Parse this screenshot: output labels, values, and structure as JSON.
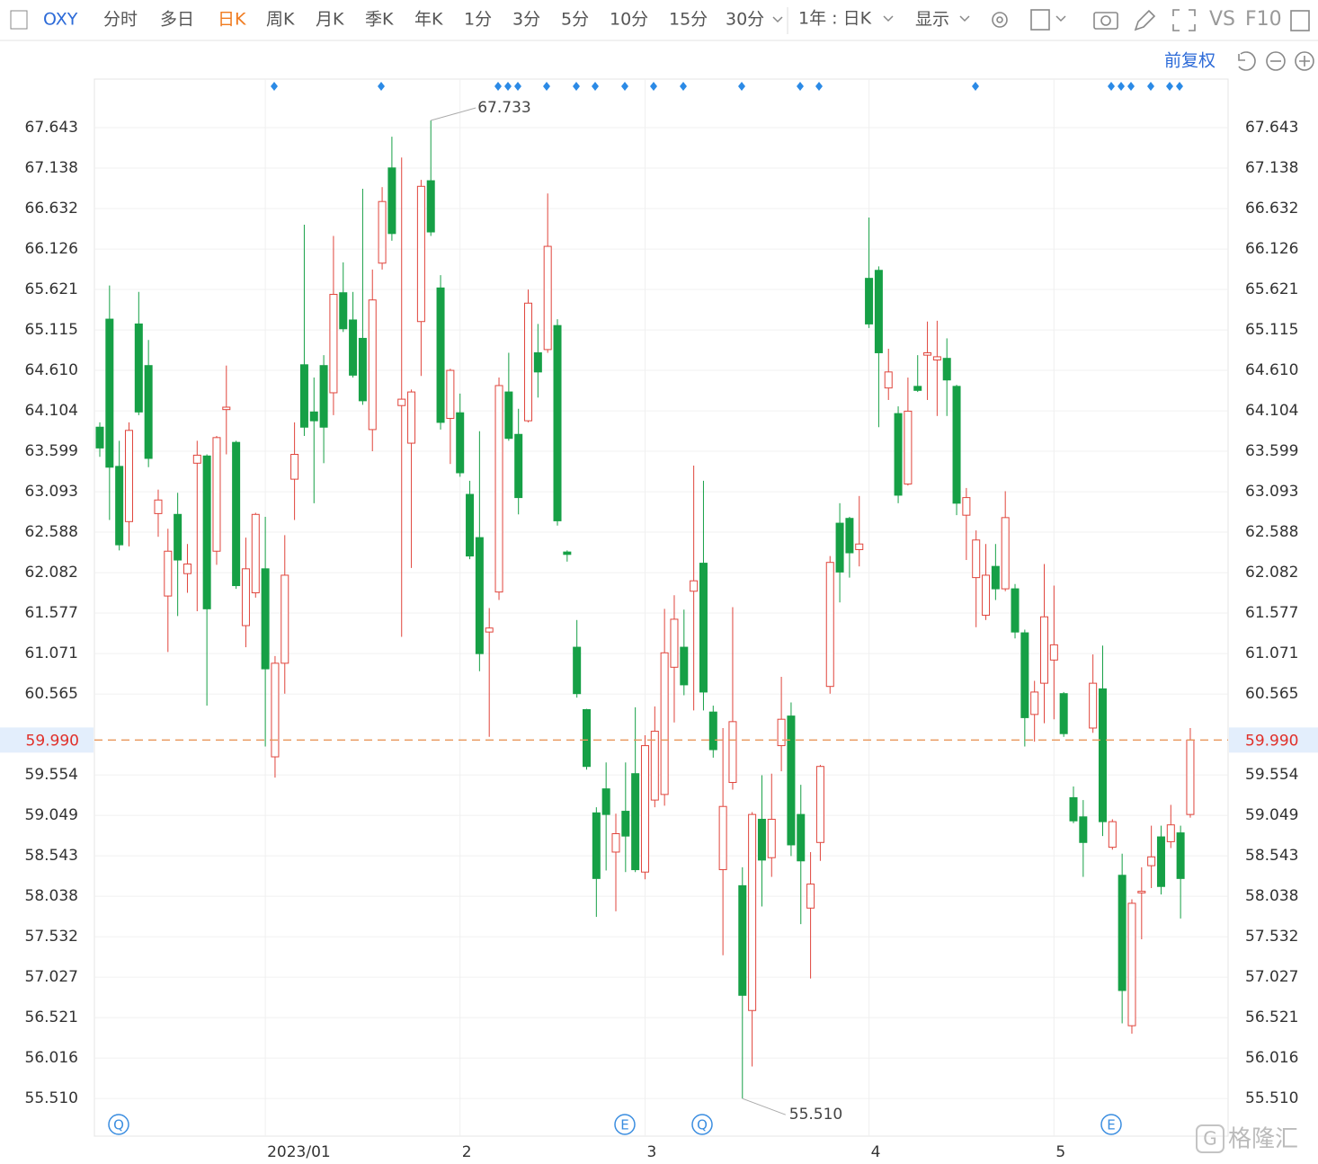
{
  "toolbar": {
    "symbol": "OXY",
    "periods": [
      "分时",
      "多日",
      "日K",
      "周K",
      "月K",
      "季K",
      "年K",
      "1分",
      "3分",
      "5分",
      "10分",
      "15分",
      "30分"
    ],
    "range": "1年 : 日K",
    "display": "显示",
    "compare": "VS",
    "f10": "F10"
  },
  "adjust": "前复权",
  "watermark": "格隆汇",
  "event_markers": [
    "Q",
    "E",
    "Q",
    "E"
  ],
  "chart_data": {
    "type": "candlestick",
    "categories": [
      null,
      null,
      null,
      null,
      null,
      null,
      null,
      null,
      null,
      null,
      null,
      null,
      null,
      null,
      null,
      null,
      null,
      "2023/01",
      null,
      null,
      null,
      null,
      null,
      null,
      null,
      null,
      null,
      null,
      null,
      null,
      null,
      null,
      null,
      null,
      null,
      null,
      null,
      "2",
      null,
      null,
      null,
      null,
      null,
      null,
      null,
      null,
      null,
      null,
      null,
      null,
      null,
      null,
      null,
      null,
      null,
      null,
      "3",
      null,
      null,
      null,
      null,
      null,
      null,
      null,
      null,
      null,
      null,
      null,
      null,
      null,
      null,
      null,
      null,
      null,
      null,
      null,
      null,
      null,
      null,
      "4",
      null,
      null,
      null,
      null,
      null,
      null,
      null,
      null,
      null,
      null,
      null,
      null,
      null,
      null,
      null,
      null,
      null,
      null,
      "5",
      null,
      null,
      null,
      null,
      null,
      null,
      null,
      null,
      null,
      null,
      null,
      null,
      null,
      null
    ],
    "open": [
      63.9,
      65.25,
      63.41,
      62.72,
      65.19,
      64.67,
      62.82,
      61.79,
      62.81,
      62.07,
      63.45,
      63.54,
      62.35,
      64.12,
      63.71,
      61.42,
      61.83,
      62.13,
      59.78,
      60.95,
      63.25,
      64.68,
      64.09,
      64.67,
      64.33,
      65.58,
      65.24,
      65.01,
      63.87,
      65.95,
      67.14,
      64.17,
      63.7,
      65.22,
      66.98,
      65.64,
      64.01,
      64.08,
      63.06,
      62.52,
      61.34,
      61.84,
      64.34,
      63.81,
      63.98,
      64.83,
      64.87,
      65.17,
      62.34,
      61.15,
      60.37,
      59.08,
      59.38,
      58.59,
      59.1,
      59.57,
      58.34,
      59.24,
      59.31,
      60.9,
      61.15,
      61.85,
      62.2,
      60.34,
      58.37,
      59.46,
      58.17,
      56.61,
      59.0,
      58.52,
      59.92,
      60.29,
      59.06,
      57.89,
      58.71,
      60.66,
      62.7,
      62.76,
      62.37,
      65.76,
      65.86,
      64.39,
      64.07,
      63.19,
      64.41,
      64.8,
      64.74,
      64.76,
      64.41,
      62.8,
      62.02,
      61.55,
      62.16,
      61.88,
      61.88,
      61.33,
      60.31,
      60.7,
      60.99,
      60.57,
      59.27,
      59.03,
      60.14,
      60.63,
      58.65,
      58.3,
      56.42,
      58.08,
      58.42,
      58.78,
      58.72,
      58.83,
      59.06
    ],
    "high": [
      63.96,
      65.67,
      63.73,
      63.96,
      65.59,
      64.99,
      63.12,
      62.63,
      63.08,
      62.44,
      63.73,
      63.56,
      63.79,
      64.67,
      63.73,
      62.52,
      62.83,
      62.78,
      61.04,
      62.55,
      63.96,
      66.43,
      64.52,
      64.8,
      66.29,
      65.96,
      65.59,
      66.88,
      65.87,
      66.9,
      67.53,
      67.27,
      64.37,
      66.99,
      67.733,
      65.8,
      64.63,
      64.32,
      63.23,
      63.85,
      61.64,
      64.52,
      64.83,
      64.13,
      65.62,
      65.19,
      66.82,
      65.25,
      62.36,
      61.49,
      60.38,
      59.15,
      59.71,
      59.07,
      59.71,
      60.4,
      60.05,
      60.41,
      61.63,
      61.8,
      61.62,
      63.42,
      63.23,
      60.42,
      60.14,
      61.65,
      58.4,
      59.09,
      59.55,
      59.57,
      60.78,
      60.46,
      59.43,
      58.59,
      59.68,
      62.29,
      62.95,
      62.78,
      63.04,
      66.52,
      65.91,
      64.88,
      64.16,
      64.52,
      64.8,
      65.22,
      65.23,
      65.01,
      64.43,
      63.14,
      62.61,
      62.44,
      62.44,
      63.1,
      61.94,
      61.37,
      60.73,
      62.19,
      61.92,
      60.59,
      59.41,
      59.24,
      61.06,
      61.17,
      59.0,
      58.57,
      58.0,
      58.4,
      58.92,
      58.92,
      59.18,
      58.92,
      60.14
    ],
    "low": [
      63.53,
      62.74,
      62.36,
      62.41,
      64.05,
      63.4,
      62.53,
      61.09,
      61.54,
      61.83,
      61.6,
      60.42,
      62.18,
      63.56,
      61.88,
      61.15,
      61.77,
      59.91,
      59.52,
      60.57,
      62.74,
      63.79,
      62.95,
      63.45,
      64.05,
      65.09,
      64.52,
      64.18,
      63.6,
      65.87,
      66.23,
      61.28,
      62.14,
      64.54,
      66.29,
      63.87,
      63.44,
      63.28,
      62.25,
      60.85,
      60.03,
      61.74,
      63.73,
      62.81,
      63.96,
      64.27,
      64.83,
      62.67,
      62.22,
      60.52,
      59.62,
      57.78,
      58.36,
      57.85,
      58.34,
      58.34,
      58.25,
      59.15,
      59.17,
      60.21,
      60.55,
      60.36,
      60.36,
      59.77,
      57.3,
      59.37,
      55.51,
      55.91,
      57.91,
      58.28,
      59.6,
      58.54,
      57.69,
      57.01,
      58.48,
      60.57,
      61.71,
      62.02,
      62.16,
      65.14,
      63.9,
      64.24,
      62.95,
      63.17,
      64.34,
      64.24,
      64.04,
      64.04,
      62.8,
      62.24,
      61.4,
      61.49,
      61.74,
      61.85,
      61.26,
      59.91,
      59.97,
      60.2,
      60.25,
      60.03,
      58.95,
      58.28,
      60.08,
      58.79,
      58.62,
      56.45,
      56.32,
      57.5,
      58.14,
      58.06,
      58.64,
      57.76,
      59.02
    ],
    "close": [
      63.64,
      63.4,
      62.43,
      63.86,
      64.09,
      63.51,
      62.99,
      62.35,
      62.24,
      62.19,
      63.55,
      61.63,
      63.77,
      64.15,
      61.92,
      62.13,
      62.81,
      60.88,
      60.95,
      62.05,
      63.56,
      63.9,
      63.98,
      63.9,
      65.56,
      65.13,
      64.55,
      64.23,
      65.49,
      66.72,
      66.32,
      64.25,
      64.34,
      66.91,
      66.34,
      63.96,
      64.61,
      63.33,
      62.29,
      61.07,
      61.39,
      64.42,
      63.76,
      63.02,
      65.45,
      64.59,
      66.16,
      62.73,
      62.31,
      60.57,
      59.66,
      58.26,
      59.06,
      58.82,
      58.79,
      58.37,
      59.92,
      60.1,
      61.08,
      61.5,
      60.68,
      61.98,
      60.59,
      59.87,
      59.16,
      60.22,
      56.8,
      59.06,
      58.49,
      59.0,
      60.25,
      58.68,
      58.48,
      58.19,
      59.66,
      62.21,
      62.09,
      62.33,
      62.44,
      65.19,
      64.83,
      64.59,
      63.05,
      64.1,
      64.36,
      64.83,
      64.78,
      64.49,
      62.95,
      63.02,
      62.49,
      62.05,
      61.88,
      62.77,
      61.34,
      60.27,
      60.59,
      61.53,
      61.18,
      60.07,
      58.98,
      58.71,
      60.7,
      58.97,
      58.97,
      56.86,
      57.95,
      58.1,
      58.53,
      58.16,
      58.93,
      58.26,
      59.99
    ],
    "up_color": "#e0453c",
    "down_color": "#16a046",
    "ylim": [
      55.04,
      68.25
    ],
    "yticks": [
      {
        "value": 55.51,
        "label": "55.510"
      },
      56.016,
      56.521,
      57.027,
      57.532,
      58.038,
      58.543,
      59.049,
      59.554,
      60.565,
      61.071,
      61.577,
      62.082,
      62.588,
      63.093,
      63.599,
      64.104,
      {
        "value": 64.61,
        "label": "64.610"
      },
      65.115,
      65.621,
      66.126,
      66.632,
      67.138,
      67.643
    ],
    "grid": true,
    "annotations": [
      "67.733",
      "55.510"
    ],
    "last_price_label": "59.990"
  }
}
